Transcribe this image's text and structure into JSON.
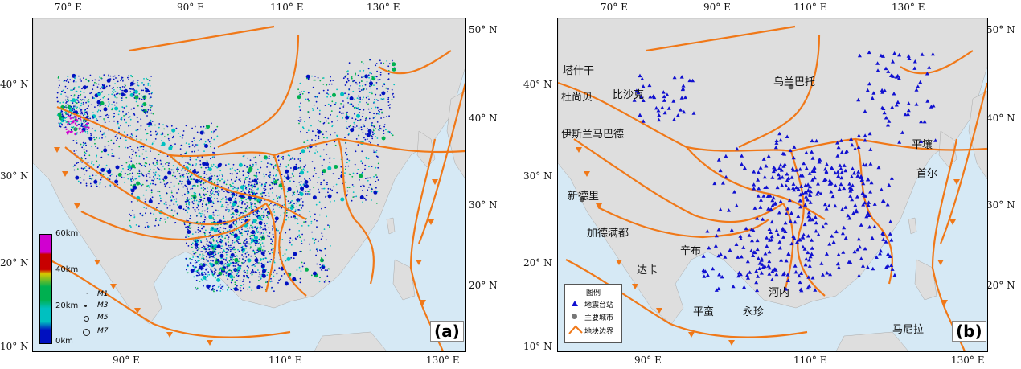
{
  "panel_a": {
    "tag": "(a)",
    "lon_labels_top": [
      "70° E",
      "90° E",
      "110° E",
      "130° E"
    ],
    "lon_labels_bottom": [
      "90° E",
      "110° E",
      "130° E"
    ],
    "lat_labels_left": [
      "40° N",
      "30° N",
      "20° N",
      "10° N"
    ],
    "lat_labels_right": [
      "50° N",
      "40° N",
      "30° N",
      "20° N"
    ],
    "depth_colorbar": {
      "ticks": [
        "60km",
        "40km",
        "20km",
        "0km"
      ],
      "colors": [
        "#d000d0",
        "#c80000",
        "#d8c800",
        "#00b050",
        "#00c0c0",
        "#0010c0"
      ]
    },
    "magnitude_legend": [
      "M1",
      "M3",
      "M5",
      "M7"
    ]
  },
  "panel_b": {
    "tag": "(b)",
    "lon_labels_top": [
      "70° E",
      "90° E",
      "110° E",
      "130° E"
    ],
    "lon_labels_bottom": [
      "90° E",
      "110° E",
      "130° E"
    ],
    "lat_labels_left": [
      "40° N",
      "30° N",
      "20° N",
      "10° N"
    ],
    "lat_labels_right": [
      "50° N",
      "40° N",
      "30° N",
      "20° N"
    ],
    "cities": [
      "塔什干",
      "比沙克",
      "杜尚贝",
      "伊斯兰马巴德",
      "新德里",
      "加德满都",
      "辛布",
      "达卡",
      "乌兰巴托",
      "平壤",
      "首尔",
      "河内",
      "平蛮",
      "永珍",
      "马尼拉"
    ],
    "legend": {
      "title": "图例",
      "items": [
        "地震台站",
        "主要城市",
        "地块边界"
      ]
    }
  },
  "colors": {
    "sea": "#d6e9f5",
    "land": "#dedede",
    "boundary": "#f07818",
    "station": "#1010d0"
  }
}
